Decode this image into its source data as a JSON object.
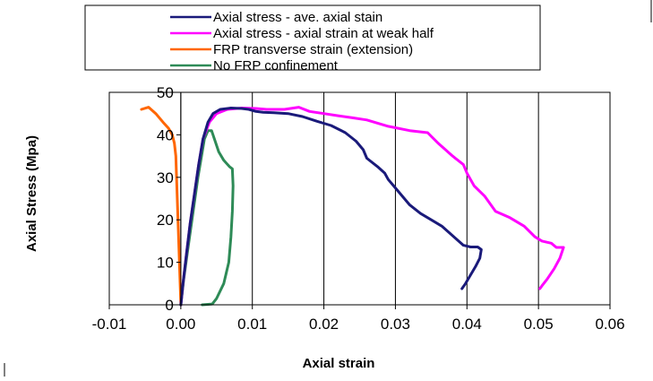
{
  "chart_data": {
    "type": "line",
    "xlabel": "Axial strain",
    "ylabel": "Axial Stress (Mpa)",
    "xlim": [
      -0.01,
      0.06
    ],
    "ylim": [
      0,
      50
    ],
    "x_ticks": [
      "-0.01",
      "0.00",
      "0.01",
      "0.02",
      "0.03",
      "0.04",
      "0.05",
      "0.06"
    ],
    "y_ticks": [
      "0",
      "10",
      "20",
      "30",
      "40",
      "50"
    ],
    "grid": "vertical",
    "legend_position": "top",
    "series": [
      {
        "name": "Axial stress - ave. axial stain",
        "color": "#1a1a7a",
        "points": [
          [
            0.0,
            0
          ],
          [
            0.0003,
            5
          ],
          [
            0.0008,
            12
          ],
          [
            0.0013,
            19
          ],
          [
            0.0019,
            26
          ],
          [
            0.0025,
            33
          ],
          [
            0.0031,
            39
          ],
          [
            0.0038,
            43
          ],
          [
            0.0045,
            45
          ],
          [
            0.0055,
            46.0
          ],
          [
            0.007,
            46.3
          ],
          [
            0.0085,
            46.2
          ],
          [
            0.0095,
            46.0
          ],
          [
            0.0105,
            45.5
          ],
          [
            0.0115,
            45.3
          ],
          [
            0.013,
            45.2
          ],
          [
            0.015,
            45.0
          ],
          [
            0.017,
            44.3
          ],
          [
            0.019,
            43.2
          ],
          [
            0.021,
            42.2
          ],
          [
            0.023,
            40.5
          ],
          [
            0.0245,
            38.5
          ],
          [
            0.0255,
            36.5
          ],
          [
            0.026,
            34.5
          ],
          [
            0.0275,
            32.5
          ],
          [
            0.0285,
            31.0
          ],
          [
            0.029,
            29.5
          ],
          [
            0.03,
            27.5
          ],
          [
            0.031,
            25.5
          ],
          [
            0.032,
            23.5
          ],
          [
            0.0335,
            21.5
          ],
          [
            0.035,
            20.0
          ],
          [
            0.0365,
            18.5
          ],
          [
            0.0375,
            17.0
          ],
          [
            0.0385,
            15.5
          ],
          [
            0.0395,
            14.0
          ],
          [
            0.0405,
            13.6
          ],
          [
            0.0415,
            13.6
          ],
          [
            0.042,
            13.0
          ],
          [
            0.0418,
            11.0
          ],
          [
            0.0412,
            9.0
          ],
          [
            0.0405,
            7.0
          ],
          [
            0.0398,
            5.0
          ],
          [
            0.0393,
            3.8
          ]
        ]
      },
      {
        "name": "Axial stress - axial strain at weak half",
        "color": "#ff00ff",
        "points": [
          [
            0.0,
            0
          ],
          [
            0.0003,
            5
          ],
          [
            0.0008,
            12
          ],
          [
            0.0013,
            19
          ],
          [
            0.0019,
            26
          ],
          [
            0.0025,
            33
          ],
          [
            0.0031,
            39
          ],
          [
            0.004,
            43
          ],
          [
            0.005,
            45
          ],
          [
            0.0065,
            46.0
          ],
          [
            0.0085,
            46.3
          ],
          [
            0.0105,
            46.2
          ],
          [
            0.012,
            46.0
          ],
          [
            0.0145,
            46.0
          ],
          [
            0.0165,
            46.5
          ],
          [
            0.018,
            45.5
          ],
          [
            0.02,
            45.0
          ],
          [
            0.022,
            44.5
          ],
          [
            0.024,
            44.0
          ],
          [
            0.026,
            43.5
          ],
          [
            0.029,
            42.0
          ],
          [
            0.032,
            41.0
          ],
          [
            0.0345,
            40.5
          ],
          [
            0.036,
            38.0
          ],
          [
            0.038,
            35.0
          ],
          [
            0.0395,
            33.0
          ],
          [
            0.04,
            31.0
          ],
          [
            0.041,
            28.0
          ],
          [
            0.0425,
            25.5
          ],
          [
            0.044,
            22.0
          ],
          [
            0.046,
            20.5
          ],
          [
            0.048,
            18.5
          ],
          [
            0.0495,
            16.0
          ],
          [
            0.0505,
            15.0
          ],
          [
            0.0518,
            14.5
          ],
          [
            0.0525,
            13.5
          ],
          [
            0.0535,
            13.5
          ],
          [
            0.053,
            11.0
          ],
          [
            0.0522,
            8.5
          ],
          [
            0.0512,
            6.0
          ],
          [
            0.0505,
            4.5
          ],
          [
            0.0502,
            3.8
          ]
        ]
      },
      {
        "name": "FRP transverse strain (extension)",
        "color": "#ff6600",
        "points": [
          [
            0.0,
            0
          ],
          [
            -0.0001,
            5
          ],
          [
            -0.0002,
            10
          ],
          [
            -0.0003,
            15
          ],
          [
            -0.0004,
            20
          ],
          [
            -0.0005,
            25
          ],
          [
            -0.0006,
            30
          ],
          [
            -0.0007,
            35
          ],
          [
            -0.0009,
            38
          ],
          [
            -0.0012,
            40
          ],
          [
            -0.0017,
            41.5
          ],
          [
            -0.0025,
            43
          ],
          [
            -0.0035,
            45
          ],
          [
            -0.0045,
            46.5
          ],
          [
            -0.0055,
            46.0
          ]
        ]
      },
      {
        "name": "No FRP confinement",
        "color": "#2e8b57",
        "points": [
          [
            0.0,
            0
          ],
          [
            0.0004,
            6
          ],
          [
            0.0009,
            12
          ],
          [
            0.0014,
            18
          ],
          [
            0.0019,
            24
          ],
          [
            0.0024,
            30
          ],
          [
            0.0029,
            35
          ],
          [
            0.0033,
            39
          ],
          [
            0.0038,
            41
          ],
          [
            0.0043,
            41.0
          ],
          [
            0.0048,
            38.5
          ],
          [
            0.0053,
            36.0
          ],
          [
            0.006,
            34.0
          ],
          [
            0.0068,
            32.5
          ],
          [
            0.0072,
            32.0
          ],
          [
            0.0073,
            28.0
          ],
          [
            0.0072,
            22.0
          ],
          [
            0.007,
            16.0
          ],
          [
            0.0067,
            10.0
          ],
          [
            0.006,
            5.0
          ],
          [
            0.005,
            1.5
          ],
          [
            0.0044,
            0.2
          ],
          [
            0.003,
            0.0
          ]
        ]
      }
    ]
  }
}
